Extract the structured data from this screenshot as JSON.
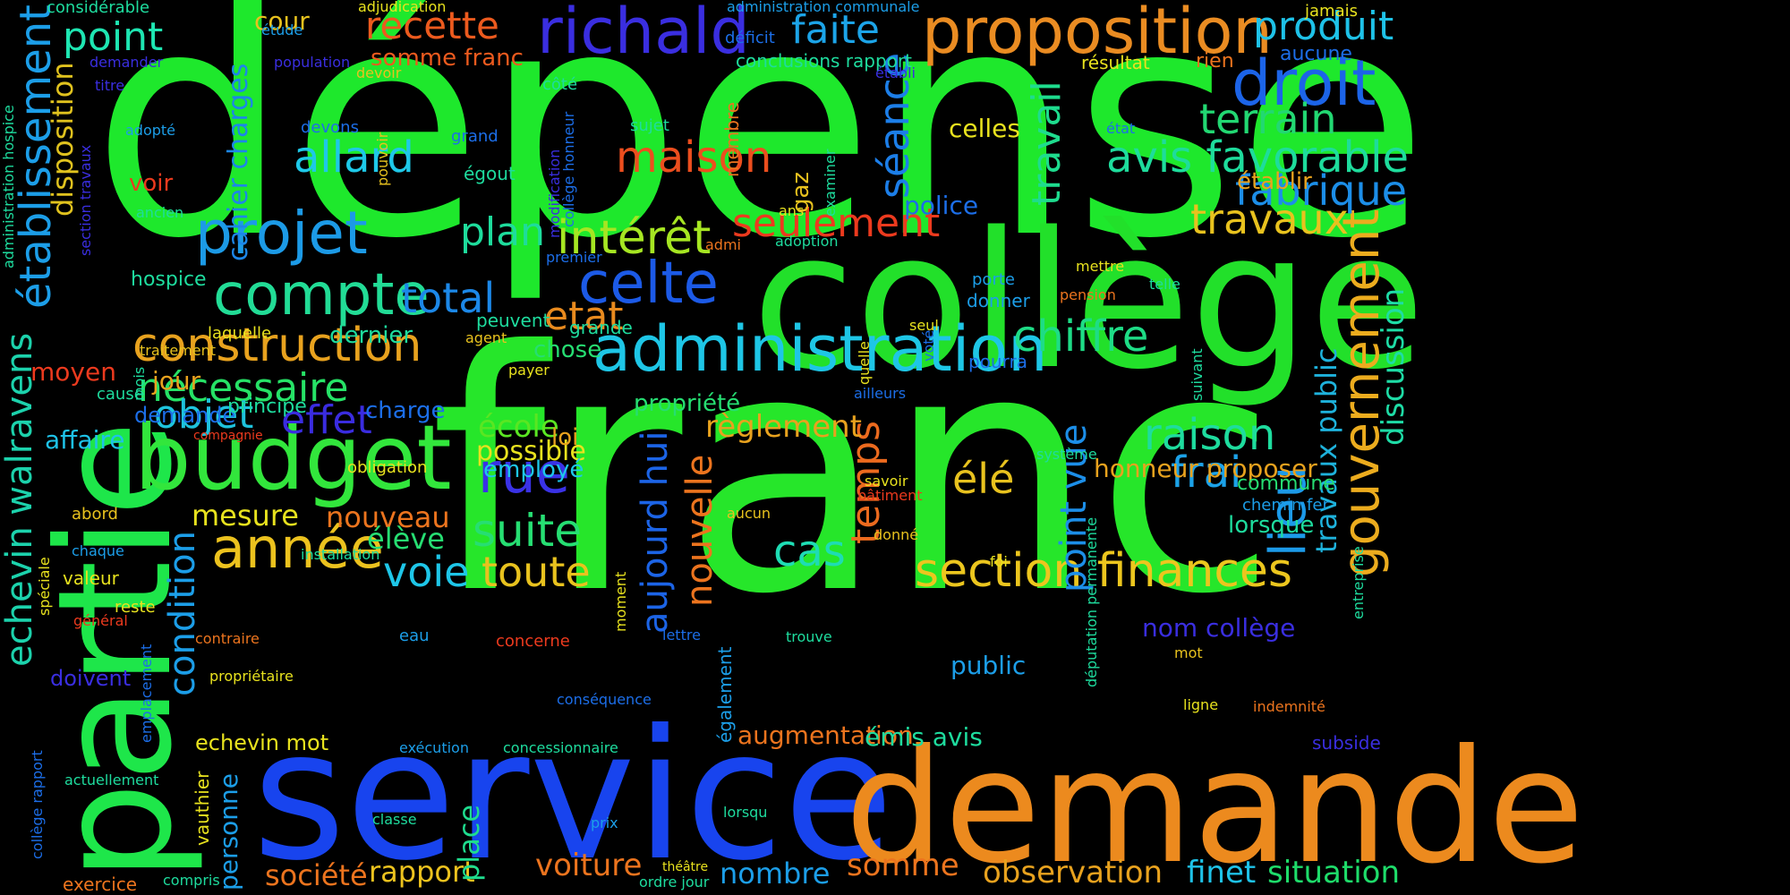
{
  "words": [
    {
      "text": "dépense",
      "color": "#1ee82c"
    },
    {
      "text": "franc",
      "color": "#26e62a"
    },
    {
      "text": "collège",
      "color": "#22e02a"
    },
    {
      "text": "service",
      "color": "#1844ee"
    },
    {
      "text": "demande",
      "color": "#ec8a1e"
    },
    {
      "text": "partie",
      "color": "#1ee64a"
    },
    {
      "text": "budget",
      "color": "#32e63c"
    },
    {
      "text": "proposition",
      "color": "#ea8c22"
    },
    {
      "text": "richald",
      "color": "#3a2ee0"
    },
    {
      "text": "droit",
      "color": "#1c64e8"
    },
    {
      "text": "administration",
      "color": "#1ec6e6"
    },
    {
      "text": "compte",
      "color": "#22dc96"
    },
    {
      "text": "projet",
      "color": "#1c9ae6"
    },
    {
      "text": "construction",
      "color": "#e8a21e"
    },
    {
      "text": "celte",
      "color": "#1c5ae6"
    },
    {
      "text": "établissement",
      "color": "#1c9ee8"
    },
    {
      "text": "echevin walravens",
      "color": "#1cd2ac"
    },
    {
      "text": "section finances",
      "color": "#ecc61e"
    },
    {
      "text": "gouvernement",
      "color": "#ecac1e"
    },
    {
      "text": "avis favorable",
      "color": "#1edc9c"
    },
    {
      "text": "fabrique",
      "color": "#1c8ee8"
    },
    {
      "text": "terrain",
      "color": "#22d872"
    },
    {
      "text": "maison",
      "color": "#ec4e1e"
    },
    {
      "text": "intérêt",
      "color": "#a6e622"
    },
    {
      "text": "allard",
      "color": "#1ec8e8"
    },
    {
      "text": "point",
      "color": "#1ee6b2"
    },
    {
      "text": "faite",
      "color": "#1ca4e8"
    },
    {
      "text": "produit",
      "color": "#1ec2e8"
    },
    {
      "text": "recette",
      "color": "#ec5a1e"
    },
    {
      "text": "total",
      "color": "#1c88e8"
    },
    {
      "text": "année",
      "color": "#ecc21e"
    },
    {
      "text": "rue",
      "color": "#3a32e6"
    },
    {
      "text": "raison",
      "color": "#1edc9e"
    },
    {
      "text": "chiffre",
      "color": "#1edc86"
    },
    {
      "text": "séance",
      "color": "#1c7ee8"
    },
    {
      "text": "lieu",
      "color": "#1c9ae8"
    },
    {
      "text": "travail",
      "color": "#1edc8e"
    },
    {
      "text": "travaux",
      "color": "#e8c21e"
    },
    {
      "text": "nécessaire",
      "color": "#26e266"
    },
    {
      "text": "objet",
      "color": "#1ec2dc"
    },
    {
      "text": "effet",
      "color": "#3a2ce0"
    },
    {
      "text": "plan",
      "color": "#1edc9c"
    },
    {
      "text": "seulement",
      "color": "#ec3a1e"
    },
    {
      "text": "etat",
      "color": "#e88a1e"
    },
    {
      "text": "suite",
      "color": "#26de72"
    },
    {
      "text": "toute",
      "color": "#e8c21e"
    },
    {
      "text": "voie",
      "color": "#1ec6e8"
    },
    {
      "text": "cas",
      "color": "#1edcb4"
    },
    {
      "text": "frai",
      "color": "#1ca2e8"
    },
    {
      "text": "élé",
      "color": "#e8c21e"
    },
    {
      "text": "temps",
      "color": "#ec6a1e"
    },
    {
      "text": "point vue",
      "color": "#1c8ee8"
    },
    {
      "text": "aujourd hui",
      "color": "#1c64e6"
    },
    {
      "text": "nouvelle",
      "color": "#ec741e"
    },
    {
      "text": "condition",
      "color": "#1c9ee8"
    },
    {
      "text": "travaux public",
      "color": "#1eb2dc"
    },
    {
      "text": "discussion",
      "color": "#1edca6"
    },
    {
      "text": "disposition",
      "color": "#e0c21e"
    },
    {
      "text": "cahier charges",
      "color": "#1c86e8"
    },
    {
      "text": "règlement",
      "color": "#e8a21e"
    },
    {
      "text": "mesure",
      "color": "#e8e21e"
    },
    {
      "text": "nouveau",
      "color": "#ec741e"
    },
    {
      "text": "école",
      "color": "#5ae622"
    },
    {
      "text": "possible",
      "color": "#e8e21e"
    },
    {
      "text": "élève",
      "color": "#26de72"
    },
    {
      "text": "observation",
      "color": "#e8a21e"
    },
    {
      "text": "finet",
      "color": "#1ec2e8"
    },
    {
      "text": "situation",
      "color": "#1edc6a"
    },
    {
      "text": "somme",
      "color": "#ec741e"
    },
    {
      "text": "voiture",
      "color": "#ec741e"
    },
    {
      "text": "société",
      "color": "#ec741e"
    },
    {
      "text": "rapport",
      "color": "#ecc21e"
    },
    {
      "text": "nombre",
      "color": "#1c9ee8"
    },
    {
      "text": "place",
      "color": "#1edc8e"
    },
    {
      "text": "personne",
      "color": "#1c9ee8"
    },
    {
      "text": "augmentation",
      "color": "#ec741e"
    },
    {
      "text": "émis avis",
      "color": "#1edc9e"
    },
    {
      "text": "public",
      "color": "#1c9ee8"
    },
    {
      "text": "nom collège",
      "color": "#3a2ee0"
    },
    {
      "text": "honneur proposer",
      "color": "#e8a21e"
    },
    {
      "text": "police",
      "color": "#1c6ee8"
    },
    {
      "text": "celles",
      "color": "#e8e21e"
    },
    {
      "text": "établir",
      "color": "#e8a21e"
    },
    {
      "text": "employé",
      "color": "#1ec6e8"
    },
    {
      "text": "propriété",
      "color": "#26de72"
    },
    {
      "text": "loi",
      "color": "#e8a21e"
    },
    {
      "text": "chose",
      "color": "#26de72"
    },
    {
      "text": "dernier",
      "color": "#1edc9e"
    },
    {
      "text": "jour",
      "color": "#e8a21e"
    },
    {
      "text": "charge",
      "color": "#1c6ee8"
    },
    {
      "text": "demandé",
      "color": "#1c6ee8"
    },
    {
      "text": "principe",
      "color": "#1edc9e"
    },
    {
      "text": "moyen",
      "color": "#ec3a1e"
    },
    {
      "text": "affaire",
      "color": "#1ec2e8"
    },
    {
      "text": "voir",
      "color": "#ec3a1e"
    },
    {
      "text": "hospice",
      "color": "#1edc9e"
    },
    {
      "text": "somme franc",
      "color": "#ec5a1e"
    },
    {
      "text": "cour",
      "color": "#e8c21e"
    },
    {
      "text": "lorsque",
      "color": "#1edc9e"
    },
    {
      "text": "commune",
      "color": "#26de72"
    },
    {
      "text": "chemin fer",
      "color": "#1c9ee8"
    },
    {
      "text": "aucune",
      "color": "#1c6ee8"
    },
    {
      "text": "rien",
      "color": "#ec741e"
    },
    {
      "text": "résultat",
      "color": "#e8e21e"
    },
    {
      "text": "jamais",
      "color": "#e8e21e"
    },
    {
      "text": "conclusions rapport",
      "color": "#1edc9e"
    },
    {
      "text": "déficit",
      "color": "#1c6ee8"
    },
    {
      "text": "administration communale",
      "color": "#1c9ee8"
    },
    {
      "text": "adjudication",
      "color": "#e8e21e"
    },
    {
      "text": "considérable",
      "color": "#1edc9e"
    },
    {
      "text": "étude",
      "color": "#1c9ee8"
    },
    {
      "text": "population",
      "color": "#3a2ee0"
    },
    {
      "text": "devoir",
      "color": "#e8c21e"
    },
    {
      "text": "établi",
      "color": "#3a2ee0"
    },
    {
      "text": "demander",
      "color": "#3a2ee0"
    },
    {
      "text": "titre",
      "color": "#3a2ee0"
    },
    {
      "text": "adopté",
      "color": "#1c9ee8"
    },
    {
      "text": "devons",
      "color": "#1c6ee8"
    },
    {
      "text": "grand",
      "color": "#1c6ee8"
    },
    {
      "text": "égout",
      "color": "#1edc9e"
    },
    {
      "text": "côté",
      "color": "#1edc9e"
    },
    {
      "text": "sujet",
      "color": "#1edc9e"
    },
    {
      "text": "ancien",
      "color": "#1edc9e"
    },
    {
      "text": "premier",
      "color": "#1c6ee8"
    },
    {
      "text": "peuvent",
      "color": "#1edc9e"
    },
    {
      "text": "grande",
      "color": "#1edc9e"
    },
    {
      "text": "agent",
      "color": "#e8c21e"
    },
    {
      "text": "payer",
      "color": "#e8e21e"
    },
    {
      "text": "laquelle",
      "color": "#e8e21e"
    },
    {
      "text": "traitement",
      "color": "#e8c21e"
    },
    {
      "text": "cause",
      "color": "#1edc9e"
    },
    {
      "text": "compagnie",
      "color": "#ec3a1e"
    },
    {
      "text": "obligation",
      "color": "#e8e21e"
    },
    {
      "text": "abord",
      "color": "#e8c21e"
    },
    {
      "text": "chaque",
      "color": "#1c9ee8"
    },
    {
      "text": "installation",
      "color": "#1edc9e"
    },
    {
      "text": "valeur",
      "color": "#e8e21e"
    },
    {
      "text": "reste",
      "color": "#e8e21e"
    },
    {
      "text": "général",
      "color": "#ec3a1e"
    },
    {
      "text": "contraire",
      "color": "#ec741e"
    },
    {
      "text": "propriétaire",
      "color": "#e8e21e"
    },
    {
      "text": "doivent",
      "color": "#3a2ee0"
    },
    {
      "text": "echevin mot",
      "color": "#e8e21e"
    },
    {
      "text": "concerne",
      "color": "#ec3a1e"
    },
    {
      "text": "eau",
      "color": "#1c9ee8"
    },
    {
      "text": "conséquence",
      "color": "#1c6ee8"
    },
    {
      "text": "exécution",
      "color": "#1c9ee8"
    },
    {
      "text": "concessionnaire",
      "color": "#1edc9e"
    },
    {
      "text": "actuellement",
      "color": "#1edc9e"
    },
    {
      "text": "classe",
      "color": "#1edc9e"
    },
    {
      "text": "exercice",
      "color": "#ec741e"
    },
    {
      "text": "compris",
      "color": "#1edc9e"
    },
    {
      "text": "prix",
      "color": "#1c9ee8"
    },
    {
      "text": "lorsqu",
      "color": "#1edc9e"
    },
    {
      "text": "théâtre",
      "color": "#e8e21e"
    },
    {
      "text": "ordre jour",
      "color": "#1edc9e"
    },
    {
      "text": "lettre",
      "color": "#1c6ee8"
    },
    {
      "text": "trouve",
      "color": "#1edc9e"
    },
    {
      "text": "donné",
      "color": "#e8c21e"
    },
    {
      "text": "aucun",
      "color": "#e8c21e"
    },
    {
      "text": "bâtiment",
      "color": "#ec3a1e"
    },
    {
      "text": "savoir",
      "color": "#e8e21e"
    },
    {
      "text": "ailleurs",
      "color": "#1c6ee8"
    },
    {
      "text": "système",
      "color": "#1edc9e"
    },
    {
      "text": "foi",
      "color": "#e8e21e"
    },
    {
      "text": "mot",
      "color": "#e8c21e"
    },
    {
      "text": "ligne",
      "color": "#e8e21e"
    },
    {
      "text": "indemnité",
      "color": "#ec741e"
    },
    {
      "text": "subside",
      "color": "#3a2ee0"
    },
    {
      "text": "porte",
      "color": "#1c9ee8"
    },
    {
      "text": "donner",
      "color": "#1c9ee8"
    },
    {
      "text": "mettre",
      "color": "#e8e21e"
    },
    {
      "text": "pension",
      "color": "#ec741e"
    },
    {
      "text": "telle",
      "color": "#1edc9e"
    },
    {
      "text": "seul",
      "color": "#e8e21e"
    },
    {
      "text": "pourra",
      "color": "#1c6ee8"
    },
    {
      "text": "ans",
      "color": "#e8e21e"
    },
    {
      "text": "adoption",
      "color": "#1edc9e"
    },
    {
      "text": "admi",
      "color": "#ec741e"
    },
    {
      "text": "état",
      "color": "#1c6ee8"
    },
    {
      "text": "gaz",
      "color": "#e8c21e"
    },
    {
      "text": "membre",
      "color": "#ec741e"
    },
    {
      "text": "examiner",
      "color": "#1edc9e"
    },
    {
      "text": "modification",
      "color": "#3a2ee0"
    },
    {
      "text": "collège honneur",
      "color": "#1c6ee8"
    },
    {
      "text": "pouvoir",
      "color": "#e8c21e"
    },
    {
      "text": "section travaux",
      "color": "#3a2ee0"
    },
    {
      "text": "administration hospice",
      "color": "#1edc9e"
    },
    {
      "text": "mois",
      "color": "#1edc9e"
    },
    {
      "text": "spéciale",
      "color": "#e8e21e"
    },
    {
      "text": "emplacement",
      "color": "#1c6ee8"
    },
    {
      "text": "collège rapport",
      "color": "#1c6ee8"
    },
    {
      "text": "vauthier",
      "color": "#e8e21e"
    },
    {
      "text": "moment",
      "color": "#e8e21e"
    },
    {
      "text": "également",
      "color": "#1c9ee8"
    },
    {
      "text": "quelle",
      "color": "#e8e21e"
    },
    {
      "text": "voté",
      "color": "#1c6ee8"
    },
    {
      "text": "suivant",
      "color": "#1edc9e"
    },
    {
      "text": "députation permanente",
      "color": "#1edc9e"
    },
    {
      "text": "entreprise",
      "color": "#1edc9e"
    }
  ]
}
